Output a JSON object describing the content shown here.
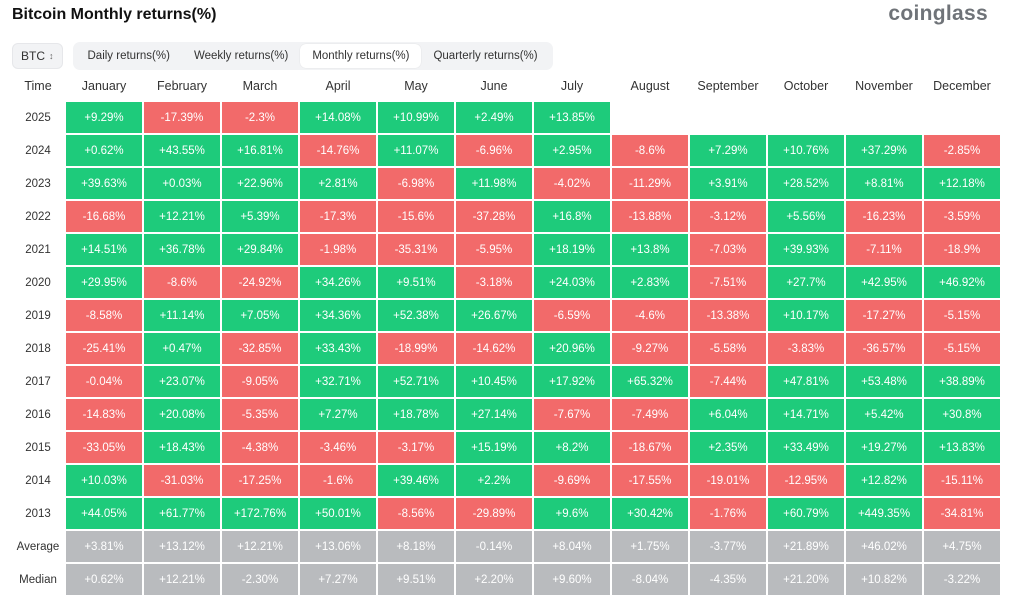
{
  "header": {
    "title": "Bitcoin Monthly returns(%)",
    "brand": "coinglass"
  },
  "toolbar": {
    "coin": "BTC",
    "tabs": [
      "Daily returns(%)",
      "Weekly returns(%)",
      "Monthly returns(%)",
      "Quarterly returns(%)"
    ],
    "active_tab": "Monthly returns(%)"
  },
  "colors": {
    "positive": "#1ecb7b",
    "negative": "#f26a6a",
    "summary": "#b9bbbe"
  },
  "table": {
    "time_label": "Time",
    "columns": [
      "January",
      "February",
      "March",
      "April",
      "May",
      "June",
      "July",
      "August",
      "September",
      "October",
      "November",
      "December"
    ],
    "rows": [
      {
        "year": "2025",
        "values": [
          "+9.29%",
          "-17.39%",
          "-2.3%",
          "+14.08%",
          "+10.99%",
          "+2.49%",
          "+13.85%",
          "",
          "",
          "",
          "",
          ""
        ]
      },
      {
        "year": "2024",
        "values": [
          "+0.62%",
          "+43.55%",
          "+16.81%",
          "-14.76%",
          "+11.07%",
          "-6.96%",
          "+2.95%",
          "-8.6%",
          "+7.29%",
          "+10.76%",
          "+37.29%",
          "-2.85%"
        ]
      },
      {
        "year": "2023",
        "values": [
          "+39.63%",
          "+0.03%",
          "+22.96%",
          "+2.81%",
          "-6.98%",
          "+11.98%",
          "-4.02%",
          "-11.29%",
          "+3.91%",
          "+28.52%",
          "+8.81%",
          "+12.18%"
        ]
      },
      {
        "year": "2022",
        "values": [
          "-16.68%",
          "+12.21%",
          "+5.39%",
          "-17.3%",
          "-15.6%",
          "-37.28%",
          "+16.8%",
          "-13.88%",
          "-3.12%",
          "+5.56%",
          "-16.23%",
          "-3.59%"
        ]
      },
      {
        "year": "2021",
        "values": [
          "+14.51%",
          "+36.78%",
          "+29.84%",
          "-1.98%",
          "-35.31%",
          "-5.95%",
          "+18.19%",
          "+13.8%",
          "-7.03%",
          "+39.93%",
          "-7.11%",
          "-18.9%"
        ]
      },
      {
        "year": "2020",
        "values": [
          "+29.95%",
          "-8.6%",
          "-24.92%",
          "+34.26%",
          "+9.51%",
          "-3.18%",
          "+24.03%",
          "+2.83%",
          "-7.51%",
          "+27.7%",
          "+42.95%",
          "+46.92%"
        ]
      },
      {
        "year": "2019",
        "values": [
          "-8.58%",
          "+11.14%",
          "+7.05%",
          "+34.36%",
          "+52.38%",
          "+26.67%",
          "-6.59%",
          "-4.6%",
          "-13.38%",
          "+10.17%",
          "-17.27%",
          "-5.15%"
        ]
      },
      {
        "year": "2018",
        "values": [
          "-25.41%",
          "+0.47%",
          "-32.85%",
          "+33.43%",
          "-18.99%",
          "-14.62%",
          "+20.96%",
          "-9.27%",
          "-5.58%",
          "-3.83%",
          "-36.57%",
          "-5.15%"
        ]
      },
      {
        "year": "2017",
        "values": [
          "-0.04%",
          "+23.07%",
          "-9.05%",
          "+32.71%",
          "+52.71%",
          "+10.45%",
          "+17.92%",
          "+65.32%",
          "-7.44%",
          "+47.81%",
          "+53.48%",
          "+38.89%"
        ]
      },
      {
        "year": "2016",
        "values": [
          "-14.83%",
          "+20.08%",
          "-5.35%",
          "+7.27%",
          "+18.78%",
          "+27.14%",
          "-7.67%",
          "-7.49%",
          "+6.04%",
          "+14.71%",
          "+5.42%",
          "+30.8%"
        ]
      },
      {
        "year": "2015",
        "values": [
          "-33.05%",
          "+18.43%",
          "-4.38%",
          "-3.46%",
          "-3.17%",
          "+15.19%",
          "+8.2%",
          "-18.67%",
          "+2.35%",
          "+33.49%",
          "+19.27%",
          "+13.83%"
        ]
      },
      {
        "year": "2014",
        "values": [
          "+10.03%",
          "-31.03%",
          "-17.25%",
          "-1.6%",
          "+39.46%",
          "+2.2%",
          "-9.69%",
          "-17.55%",
          "-19.01%",
          "-12.95%",
          "+12.82%",
          "-15.11%"
        ]
      },
      {
        "year": "2013",
        "values": [
          "+44.05%",
          "+61.77%",
          "+172.76%",
          "+50.01%",
          "-8.56%",
          "-29.89%",
          "+9.6%",
          "+30.42%",
          "-1.76%",
          "+60.79%",
          "+449.35%",
          "-34.81%"
        ]
      }
    ],
    "summary": [
      {
        "label": "Average",
        "values": [
          "+3.81%",
          "+13.12%",
          "+12.21%",
          "+13.06%",
          "+8.18%",
          "-0.14%",
          "+8.04%",
          "+1.75%",
          "-3.77%",
          "+21.89%",
          "+46.02%",
          "+4.75%"
        ]
      },
      {
        "label": "Median",
        "values": [
          "+0.62%",
          "+12.21%",
          "-2.30%",
          "+7.27%",
          "+9.51%",
          "+2.20%",
          "+9.60%",
          "-8.04%",
          "-4.35%",
          "+21.20%",
          "+10.82%",
          "-3.22%"
        ]
      }
    ]
  }
}
